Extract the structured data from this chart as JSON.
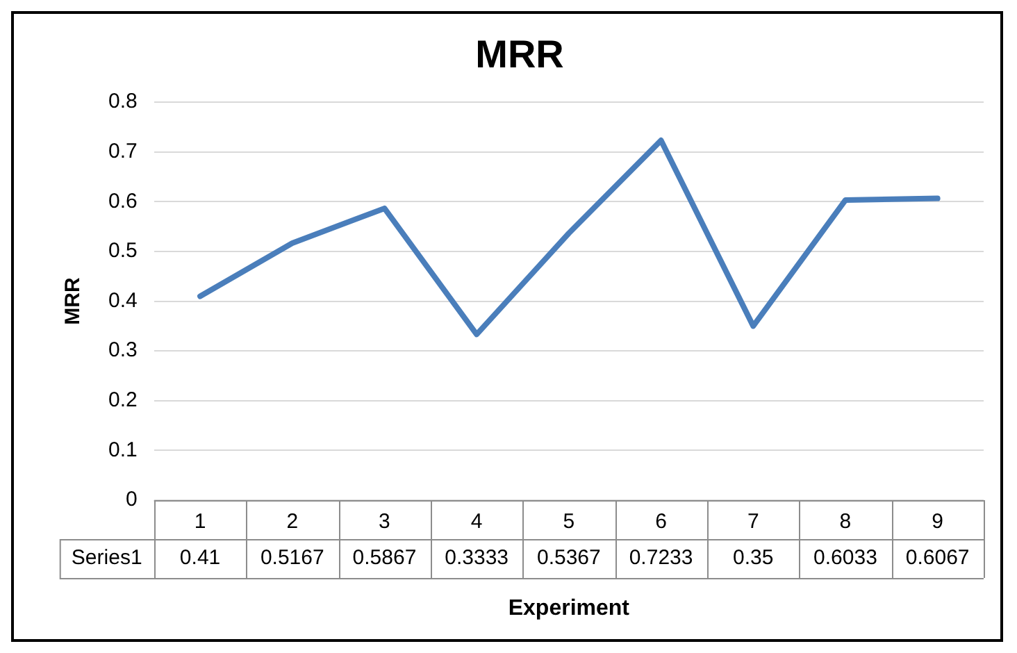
{
  "chart_data": {
    "type": "line",
    "title": "MRR",
    "xlabel": "Experiment",
    "ylabel": "MRR",
    "categories": [
      "1",
      "2",
      "3",
      "4",
      "5",
      "6",
      "7",
      "8",
      "9"
    ],
    "series": [
      {
        "name": "Series1",
        "color": "#4a7ebb",
        "values": [
          0.41,
          0.5167,
          0.5867,
          0.3333,
          0.5367,
          0.7233,
          0.35,
          0.6033,
          0.6067
        ]
      }
    ],
    "ylim": [
      0,
      0.8
    ],
    "yticks": [
      0,
      0.1,
      0.2,
      0.3,
      0.4,
      0.5,
      0.6,
      0.7,
      0.8
    ],
    "grid": "y",
    "legend": false,
    "marker": "none",
    "line_style": "solid",
    "data_labels": true
  }
}
